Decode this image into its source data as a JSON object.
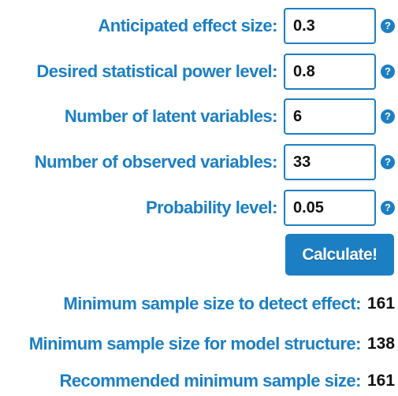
{
  "form": {
    "fields": [
      {
        "label": "Anticipated effect size:",
        "value": "0.3",
        "help": "?"
      },
      {
        "label": "Desired statistical power level:",
        "value": "0.8",
        "help": "?"
      },
      {
        "label": "Number of latent variables:",
        "value": "6",
        "help": "?"
      },
      {
        "label": "Number of observed variables:",
        "value": "33",
        "help": "?"
      },
      {
        "label": "Probability level:",
        "value": "0.05",
        "help": "?"
      }
    ],
    "calculate_label": "Calculate!"
  },
  "results": [
    {
      "label": "Minimum sample size to detect effect:",
      "value": "161"
    },
    {
      "label": "Minimum sample size for model structure:",
      "value": "138"
    },
    {
      "label": "Recommended minimum sample size:",
      "value": "161"
    }
  ],
  "colors": {
    "accent": "#1c7fc4",
    "value_text": "#111111"
  }
}
